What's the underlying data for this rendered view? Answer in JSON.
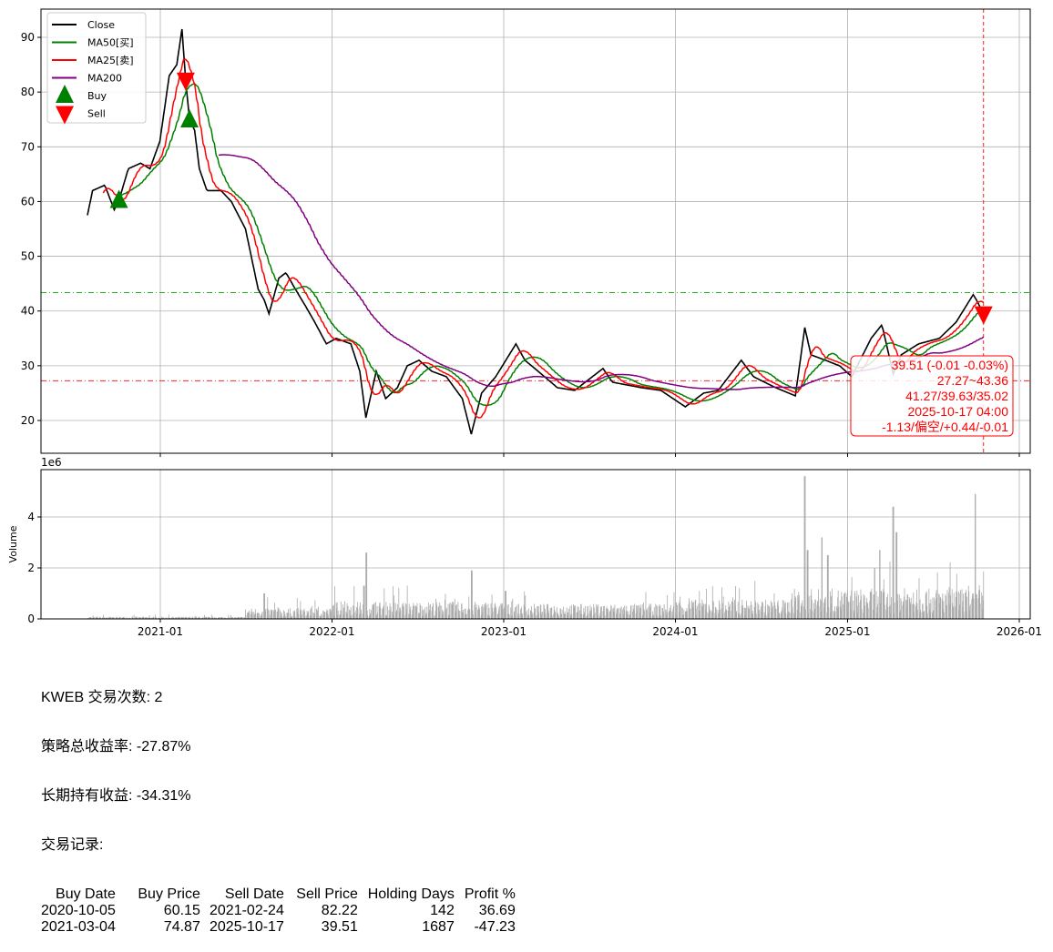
{
  "chart_data": [
    {
      "type": "line",
      "panel": "price",
      "ylim": [
        14,
        95
      ],
      "yticks": [
        20,
        30,
        40,
        50,
        60,
        70,
        80,
        90
      ],
      "grid": true,
      "legend_placement": "top-left",
      "legend": [
        {
          "label": "Close",
          "color": "#000000",
          "kind": "line"
        },
        {
          "label": "MA50[买]",
          "color": "#008000",
          "kind": "line"
        },
        {
          "label": "MA25[卖]",
          "color": "#ff0000",
          "kind": "line"
        },
        {
          "label": "MA200",
          "color": "#800080",
          "kind": "line"
        },
        {
          "label": "Buy",
          "color": "#008000",
          "kind": "triangle-up"
        },
        {
          "label": "Sell",
          "color": "#ff0000",
          "kind": "triangle-down"
        }
      ],
      "close_keypoints": [
        [
          "2020-07-30",
          57.5
        ],
        [
          "2020-08-10",
          62
        ],
        [
          "2020-09-05",
          63
        ],
        [
          "2020-09-25",
          58.5
        ],
        [
          "2020-10-05",
          60.2
        ],
        [
          "2020-10-25",
          66
        ],
        [
          "2020-11-20",
          67
        ],
        [
          "2020-12-10",
          66
        ],
        [
          "2020-12-31",
          71
        ],
        [
          "2021-01-20",
          83
        ],
        [
          "2021-02-05",
          85
        ],
        [
          "2021-02-16",
          91.5
        ],
        [
          "2021-02-24",
          82
        ],
        [
          "2021-03-04",
          75
        ],
        [
          "2021-03-15",
          73
        ],
        [
          "2021-03-25",
          66
        ],
        [
          "2021-04-10",
          62
        ],
        [
          "2021-05-10",
          62
        ],
        [
          "2021-06-01",
          60
        ],
        [
          "2021-07-01",
          55
        ],
        [
          "2021-07-28",
          44
        ],
        [
          "2021-08-10",
          42
        ],
        [
          "2021-08-20",
          39.5
        ],
        [
          "2021-09-10",
          46
        ],
        [
          "2021-09-25",
          47
        ],
        [
          "2021-10-15",
          44
        ],
        [
          "2021-11-05",
          41
        ],
        [
          "2021-11-25",
          38
        ],
        [
          "2021-12-20",
          34
        ],
        [
          "2022-01-10",
          35
        ],
        [
          "2022-02-10",
          34
        ],
        [
          "2022-03-01",
          29
        ],
        [
          "2022-03-14",
          20.5
        ],
        [
          "2022-04-05",
          29
        ],
        [
          "2022-04-25",
          24
        ],
        [
          "2022-05-20",
          26
        ],
        [
          "2022-06-10",
          30
        ],
        [
          "2022-07-05",
          31
        ],
        [
          "2022-08-01",
          29
        ],
        [
          "2022-09-01",
          28
        ],
        [
          "2022-10-05",
          24
        ],
        [
          "2022-10-24",
          17.5
        ],
        [
          "2022-11-15",
          25
        ],
        [
          "2022-12-15",
          28
        ],
        [
          "2023-01-27",
          34
        ],
        [
          "2023-02-15",
          31
        ],
        [
          "2023-03-15",
          29
        ],
        [
          "2023-04-25",
          26
        ],
        [
          "2023-06-01",
          25.5
        ],
        [
          "2023-07-31",
          29.5
        ],
        [
          "2023-08-20",
          27
        ],
        [
          "2023-10-20",
          26
        ],
        [
          "2023-12-01",
          25.5
        ],
        [
          "2024-01-22",
          22.5
        ],
        [
          "2024-03-01",
          25
        ],
        [
          "2024-04-01",
          25.5
        ],
        [
          "2024-05-20",
          31
        ],
        [
          "2024-06-15",
          28
        ],
        [
          "2024-08-01",
          26
        ],
        [
          "2024-09-12",
          24.5
        ],
        [
          "2024-10-02",
          37
        ],
        [
          "2024-10-15",
          32
        ],
        [
          "2024-11-15",
          31
        ],
        [
          "2024-12-15",
          30
        ],
        [
          "2025-01-10",
          28
        ],
        [
          "2025-02-20",
          35
        ],
        [
          "2025-03-15",
          37.5
        ],
        [
          "2025-04-08",
          28.5
        ],
        [
          "2025-04-25",
          32
        ],
        [
          "2025-06-01",
          34
        ],
        [
          "2025-07-15",
          35
        ],
        [
          "2025-08-20",
          38
        ],
        [
          "2025-09-25",
          43
        ],
        [
          "2025-10-02",
          42
        ],
        [
          "2025-10-17",
          39.51
        ]
      ],
      "moving_averages": [
        {
          "name": "MA50[买]",
          "window": 50,
          "color": "#008000"
        },
        {
          "name": "MA25[卖]",
          "window": 25,
          "color": "#ff0000"
        },
        {
          "name": "MA200",
          "window": 200,
          "color": "#800080"
        }
      ],
      "buy_markers": [
        [
          "2020-10-05",
          60.15
        ],
        [
          "2021-03-04",
          74.87
        ]
      ],
      "sell_markers": [
        [
          "2021-02-24",
          82.22
        ],
        [
          "2025-10-17",
          39.51
        ]
      ],
      "hlines": [
        {
          "value": 43.36,
          "color": "#00aa00",
          "style": "dash-dot"
        },
        {
          "value": 27.27,
          "color": "#ff0000",
          "style": "dash-dot"
        }
      ],
      "vline": {
        "date": "2025-10-17",
        "color": "#ff0000",
        "style": "dashed"
      },
      "annotation": [
        "39.51 (-0.01 -0.03%)",
        "27.27~43.36",
        "41.27/39.63/35.02",
        "2025-10-17 04:00",
        "-1.13/偏空/+0.44/-0.01"
      ]
    },
    {
      "type": "bar",
      "panel": "volume",
      "ylabel": "Volume",
      "scale_label": "1e6",
      "ylim": [
        0,
        5.9
      ],
      "yticks": [
        0,
        2,
        4
      ],
      "color": "#aaaaaa",
      "baseline_levels_millions": [
        [
          "2020-07-30",
          0.05
        ],
        [
          "2021-07-01",
          0.25
        ],
        [
          "2022-01-01",
          0.4
        ],
        [
          "2023-01-01",
          0.35
        ],
        [
          "2024-01-01",
          0.45
        ],
        [
          "2024-09-01",
          0.7
        ],
        [
          "2025-10-17",
          0.7
        ]
      ],
      "volume_peaks_millions": [
        [
          "2021-08-10",
          1.0
        ],
        [
          "2022-03-15",
          2.6
        ],
        [
          "2022-03-10",
          1.3
        ],
        [
          "2022-10-25",
          1.9
        ],
        [
          "2023-01-05",
          1.1
        ],
        [
          "2024-10-02",
          5.6
        ],
        [
          "2024-10-08",
          2.7
        ],
        [
          "2024-11-08",
          3.2
        ],
        [
          "2024-11-20",
          2.5
        ],
        [
          "2025-02-28",
          2.0
        ],
        [
          "2025-03-10",
          2.7
        ],
        [
          "2025-04-08",
          4.4
        ],
        [
          "2025-04-15",
          3.4
        ],
        [
          "2025-06-01",
          1.6
        ],
        [
          "2025-09-29",
          4.9
        ]
      ]
    }
  ],
  "x_axis": {
    "ticks": [
      "2021-01",
      "2022-01",
      "2023-01",
      "2024-01",
      "2025-01",
      "2026-01"
    ]
  },
  "summary": {
    "line1": "KWEB 交易次数: 2",
    "line2": "策略总收益率: -27.87%",
    "line3": "长期持有收益: -34.31%",
    "line4": "交易记录:",
    "table": {
      "headers": [
        "Buy Date",
        "Buy Price",
        "Sell Date",
        "Sell Price",
        "Holding Days",
        "Profit %"
      ],
      "rows": [
        [
          "2020-10-05",
          "60.15",
          "2021-02-24",
          "82.22",
          "142",
          "36.69"
        ],
        [
          "2021-03-04",
          "74.87",
          "2025-10-17",
          "39.51",
          "1687",
          "-47.23"
        ]
      ]
    }
  }
}
